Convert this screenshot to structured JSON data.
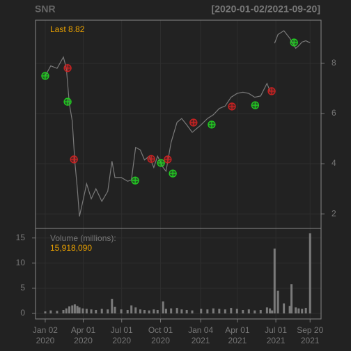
{
  "chart_data": [
    {
      "type": "line",
      "title": "SNR",
      "subtitle": "[2020-01-02/2021-09-20]",
      "annotation": "Last 8.82",
      "xlim": [
        "2019-12-10",
        "2021-10-16"
      ],
      "ylim": [
        1.42,
        9.72
      ],
      "yticks": [
        2,
        4,
        6,
        8
      ],
      "grid": true,
      "series": [
        {
          "color": "#7a7a7a",
          "x": [
            "2020-01-02",
            "2020-01-15",
            "2020-01-30",
            "2020-02-14",
            "2020-02-21",
            "2020-02-28",
            "2020-03-06",
            "2020-03-12",
            "2020-03-18",
            "2020-03-23",
            "2020-03-31",
            "2020-04-09",
            "2020-04-20",
            "2020-05-01",
            "2020-05-15",
            "2020-05-29",
            "2020-06-08",
            "2020-06-15",
            "2020-06-30",
            "2020-07-15",
            "2020-07-24",
            "2020-08-03",
            "2020-08-14",
            "2020-08-24",
            "2020-09-04",
            "2020-09-15",
            "2020-09-24",
            "2020-10-07",
            "2020-10-14",
            "2020-10-26",
            "2020-11-09",
            "2020-11-20",
            "2020-12-02",
            "2020-12-15",
            "2021-01-05",
            "2021-01-20",
            "2021-02-03",
            "2021-02-17",
            "2021-03-03",
            "2021-03-17",
            "2021-03-31",
            "2021-04-14",
            "2021-04-28",
            "2021-05-12",
            "2021-05-26",
            "2021-06-10",
            "2021-06-17",
            "2021-06-22",
            "2021-06-28",
            "2021-07-06",
            "2021-07-20",
            "2021-08-03",
            "2021-08-17",
            "2021-08-24",
            "2021-09-01",
            "2021-09-10",
            "2021-09-20"
          ],
          "values": [
            7.5,
            7.9,
            7.8,
            8.25,
            7.8,
            6.4,
            5.7,
            4.1,
            3.0,
            1.9,
            2.5,
            3.2,
            2.6,
            3.0,
            2.5,
            2.9,
            4.1,
            3.45,
            3.45,
            3.3,
            3.35,
            4.65,
            4.55,
            4.15,
            4.3,
            3.85,
            4.3,
            3.85,
            3.7,
            4.85,
            5.65,
            5.8,
            5.55,
            5.25,
            5.55,
            5.8,
            5.95,
            6.2,
            6.3,
            6.65,
            6.8,
            6.85,
            6.8,
            6.65,
            6.7,
            7.2,
            6.9,
            null,
            8.8,
            9.15,
            9.3,
            9.0,
            8.6,
            8.7,
            8.85,
            8.9,
            8.82
          ]
        },
        {
          "type": "scatter",
          "color": "#22cc22",
          "x": [
            "2020-01-02",
            "2020-02-24",
            "2020-08-02",
            "2020-10-02",
            "2020-10-30",
            "2021-01-30",
            "2021-05-13",
            "2021-08-13"
          ],
          "values": [
            7.5,
            6.47,
            3.33,
            4.03,
            3.61,
            5.56,
            6.33,
            8.83
          ]
        },
        {
          "type": "scatter",
          "color": "#cc2222",
          "x": [
            "2020-02-24",
            "2020-03-10",
            "2020-09-09",
            "2020-10-18",
            "2020-12-18",
            "2021-03-19",
            "2021-06-21"
          ],
          "values": [
            7.81,
            4.17,
            4.19,
            4.17,
            5.64,
            6.28,
            6.89
          ]
        }
      ]
    },
    {
      "type": "bar",
      "annotation": "Volume (millions):",
      "last_label": "15,918,090",
      "xlim": [
        "2019-12-10",
        "2021-10-16"
      ],
      "ylim": [
        -1.1,
        16.9
      ],
      "yticks": [
        0,
        5,
        10,
        15
      ],
      "grid": true,
      "xticks": [
        {
          "value": "2020-01-02",
          "label": [
            "Jan 02",
            "2020"
          ]
        },
        {
          "value": "2020-04-01",
          "label": [
            "Apr 01",
            "2020"
          ]
        },
        {
          "value": "2020-07-01",
          "label": [
            "Jul 01",
            "2020"
          ]
        },
        {
          "value": "2020-10-01",
          "label": [
            "Oct 01",
            "2020"
          ]
        },
        {
          "value": "2021-01-04",
          "label": [
            "Jan 04",
            "2021"
          ]
        },
        {
          "value": "2021-04-01",
          "label": [
            "Apr 01",
            "2021"
          ]
        },
        {
          "value": "2021-07-01",
          "label": [
            "Jul 01",
            "2021"
          ]
        },
        {
          "value": "2021-09-20",
          "label": [
            "Sep 20",
            "2021"
          ]
        }
      ],
      "color": "#7a7a7a",
      "x": [
        "2020-01-02",
        "2020-01-15",
        "2020-01-30",
        "2020-02-14",
        "2020-02-21",
        "2020-02-28",
        "2020-03-06",
        "2020-03-12",
        "2020-03-18",
        "2020-03-23",
        "2020-03-31",
        "2020-04-09",
        "2020-04-20",
        "2020-05-01",
        "2020-05-15",
        "2020-05-29",
        "2020-06-08",
        "2020-06-15",
        "2020-06-30",
        "2020-07-15",
        "2020-07-24",
        "2020-08-03",
        "2020-08-14",
        "2020-08-24",
        "2020-09-04",
        "2020-09-15",
        "2020-09-24",
        "2020-10-07",
        "2020-10-14",
        "2020-10-26",
        "2020-11-09",
        "2020-11-20",
        "2020-12-02",
        "2020-12-15",
        "2021-01-05",
        "2021-01-20",
        "2021-02-03",
        "2021-02-17",
        "2021-03-03",
        "2021-03-17",
        "2021-03-31",
        "2021-04-14",
        "2021-04-28",
        "2021-05-12",
        "2021-05-26",
        "2021-06-10",
        "2021-06-17",
        "2021-06-22",
        "2021-06-28",
        "2021-07-06",
        "2021-07-20",
        "2021-08-03",
        "2021-08-07",
        "2021-08-17",
        "2021-08-24",
        "2021-09-01",
        "2021-09-10",
        "2021-09-20"
      ],
      "values": [
        0.4,
        0.6,
        0.5,
        0.7,
        1.0,
        1.4,
        1.6,
        1.8,
        1.5,
        1.2,
        1.0,
        0.9,
        0.8,
        0.7,
        0.9,
        0.8,
        2.9,
        1.3,
        0.8,
        0.7,
        1.6,
        1.2,
        0.8,
        0.7,
        0.6,
        0.8,
        0.7,
        2.4,
        0.9,
        1.0,
        1.1,
        0.8,
        0.7,
        0.6,
        0.9,
        0.8,
        1.0,
        0.9,
        0.8,
        1.1,
        0.9,
        0.7,
        0.8,
        0.6,
        0.7,
        1.2,
        1.0,
        0.6,
        12.9,
        4.5,
        2.0,
        1.5,
        5.8,
        1.2,
        1.0,
        0.9,
        1.1,
        15.91809
      ]
    }
  ]
}
